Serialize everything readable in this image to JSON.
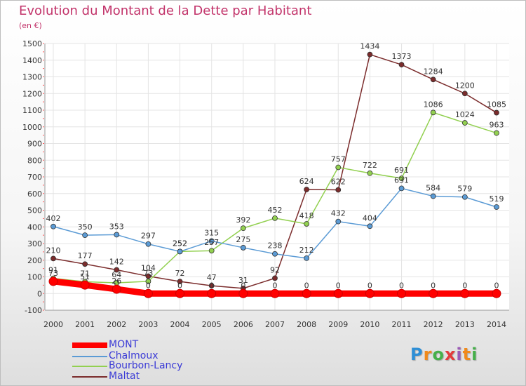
{
  "header": {
    "title": "Evolution du Montant de la Dette par Habitant",
    "subtitle": "(en €)"
  },
  "chart_data": {
    "type": "line",
    "title": "Evolution du Montant de la Dette par Habitant",
    "subtitle": "(en €)",
    "xlabel": "",
    "ylabel": "",
    "ylim": [
      -100,
      1500
    ],
    "yticks": [
      -100,
      0,
      100,
      200,
      300,
      400,
      500,
      600,
      700,
      800,
      900,
      1000,
      1100,
      1200,
      1300,
      1400,
      1500
    ],
    "grid": true,
    "legend_position": "bottom-left",
    "categories": [
      "2000",
      "2001",
      "2002",
      "2003",
      "2004",
      "2005",
      "2006",
      "2007",
      "2008",
      "2009",
      "2010",
      "2011",
      "2012",
      "2013",
      "2014"
    ],
    "series": [
      {
        "name": "MONT",
        "color": "#ff0000",
        "values": [
          73,
          51,
          26,
          0,
          0,
          0,
          0,
          0,
          0,
          0,
          0,
          0,
          0,
          0,
          0
        ]
      },
      {
        "name": "Chalmoux",
        "color": "#5b9bd5",
        "values": [
          402,
          350,
          353,
          297,
          252,
          315,
          275,
          238,
          212,
          432,
          404,
          631,
          584,
          579,
          519
        ]
      },
      {
        "name": "Bourbon-Lancy",
        "color": "#92d050",
        "values": [
          91,
          71,
          64,
          73,
          252,
          257,
          392,
          452,
          418,
          757,
          722,
          691,
          1086,
          1024,
          963
        ]
      },
      {
        "name": "Maltat",
        "color": "#7b2c2c",
        "values": [
          210,
          177,
          142,
          104,
          72,
          47,
          31,
          92,
          624,
          622,
          1434,
          1373,
          1284,
          1200,
          1085
        ]
      }
    ]
  },
  "legend": {
    "items": [
      {
        "label": "MONT"
      },
      {
        "label": "Chalmoux"
      },
      {
        "label": "Bourbon-Lancy"
      },
      {
        "label": "Maltat"
      }
    ]
  },
  "logo": {
    "letters": [
      "P",
      "r",
      "o",
      "x",
      "i",
      "t",
      "i"
    ]
  }
}
